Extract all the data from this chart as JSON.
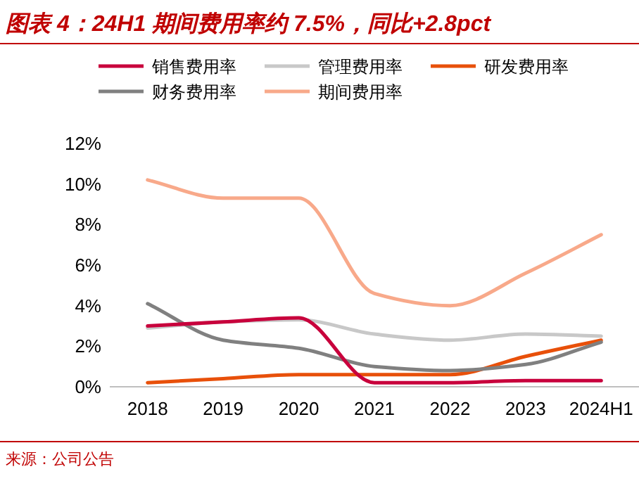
{
  "chart_data": {
    "type": "line",
    "title": "图表 4：24H1 期间费用率约 7.5%，同比+2.8pct",
    "categories": [
      "2018",
      "2019",
      "2020",
      "2021",
      "2022",
      "2023",
      "2024H1"
    ],
    "series": [
      {
        "name": "销售费用率",
        "color": "#c8003c",
        "values": [
          3.0,
          3.2,
          3.4,
          0.2,
          0.2,
          0.3,
          0.3
        ]
      },
      {
        "name": "管理费用率",
        "color": "#c8c8c8",
        "values": [
          2.9,
          3.2,
          3.3,
          2.6,
          2.3,
          2.6,
          2.5
        ]
      },
      {
        "name": "研发费用率",
        "color": "#e8500a",
        "values": [
          0.2,
          0.4,
          0.6,
          0.6,
          0.6,
          1.5,
          2.3
        ]
      },
      {
        "name": "财务费用率",
        "color": "#808080",
        "values": [
          4.1,
          2.3,
          1.9,
          1.0,
          0.8,
          1.1,
          2.2
        ]
      },
      {
        "name": "期间费用率",
        "color": "#f8a98a",
        "values": [
          10.2,
          9.3,
          9.3,
          4.6,
          4.0,
          5.6,
          7.5
        ]
      }
    ],
    "ylim": [
      0,
      12
    ],
    "yticks": [
      {
        "value": 0,
        "label": "0%"
      },
      {
        "value": 2,
        "label": "2%"
      },
      {
        "value": 4,
        "label": "4%"
      },
      {
        "value": 6,
        "label": "6%"
      },
      {
        "value": 8,
        "label": "8%"
      },
      {
        "value": 10,
        "label": "10%"
      },
      {
        "value": 12,
        "label": "12%"
      }
    ],
    "legend": "top",
    "grid": false,
    "marker": "none",
    "line_style": "solid",
    "annotations": [
      "来源：公司公告"
    ]
  }
}
